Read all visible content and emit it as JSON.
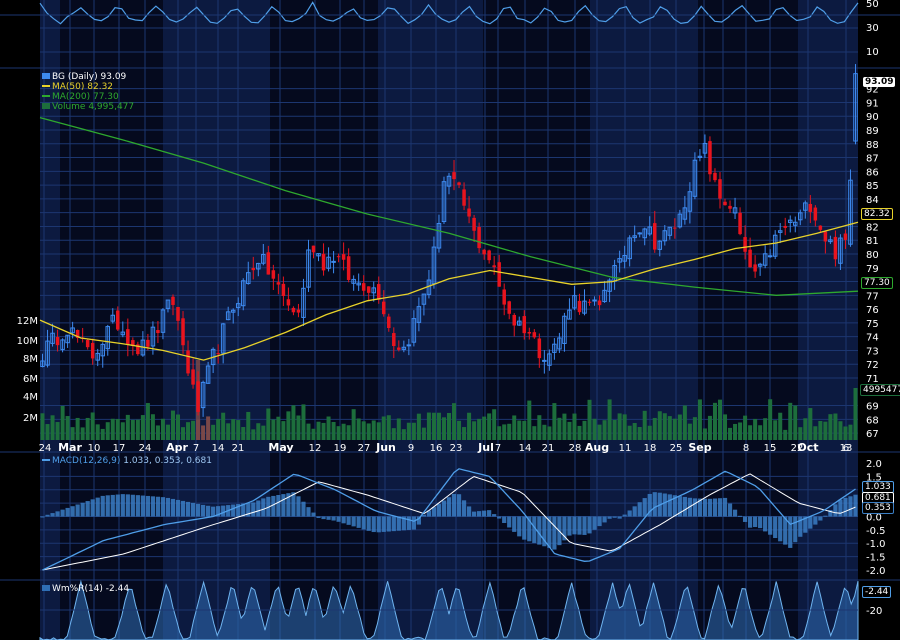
{
  "colors": {
    "background": "#000000",
    "band_dark": "#050a1e",
    "band_light": "#0c1a40",
    "grid": "#1c3670",
    "up_candle": "#3d8af0",
    "down_candle": "#e8141e",
    "ma50": "#e8d22a",
    "ma200": "#2ea82e",
    "volume": "#1d6e3c",
    "macd_line": "#4f9ee8",
    "signal_line": "#ffffff",
    "histogram": "#3b7ec4",
    "wr_fill": "#2f6eb5"
  },
  "legend": {
    "symbol": "BG (Daily) 93.09",
    "ma50": "MA(50) 82.32",
    "ma200": "MA(200) 77.30",
    "volume": "Volume 4,995,477"
  },
  "macd_legend": {
    "label": "MACD(12,26,9)",
    "values": "1.033, 0.353, 0.681"
  },
  "wr_legend": "Wm%R(14) -2.44",
  "badges": {
    "price": "93.09",
    "ma50": "82.32",
    "ma200": "77.30",
    "volume": "4995477",
    "macd_1": "1.033",
    "macd_2": "0.681",
    "macd_3": "0.353",
    "wr": "-2.44"
  },
  "top_axis": [
    "50",
    "30",
    "10"
  ],
  "chart_data": [
    {
      "type": "candlestick",
      "title": "BG (Daily)",
      "y_ticks": [
        67,
        68,
        69,
        71,
        72,
        73,
        74,
        75,
        76,
        77,
        78,
        79,
        80,
        81,
        82,
        83,
        84,
        85,
        86,
        87,
        88,
        89,
        90,
        91,
        92
      ],
      "ylim": [
        66.5,
        93.5
      ],
      "x_day_labels": [
        "24",
        "10",
        "17",
        "24",
        "7",
        "14",
        "21",
        "12",
        "19",
        "27",
        "9",
        "16",
        "23",
        "7",
        "14",
        "21",
        "28",
        "11",
        "18",
        "25",
        "8",
        "15",
        "22",
        "6",
        "13"
      ],
      "x_month_labels": [
        "Mar",
        "Apr",
        "May",
        "Jun",
        "Jul",
        "Aug",
        "Sep",
        "Oct"
      ],
      "last_close": 93.09,
      "ma50_last": 82.32,
      "ma200_last": 77.3
    },
    {
      "type": "bar",
      "title": "Volume",
      "y_ticks": [
        "12M",
        "10M",
        "8M",
        "6M",
        "4M",
        "2M"
      ],
      "last_value": 4995477
    },
    {
      "type": "line",
      "title": "MACD(12,26,9)",
      "y_ticks": [
        "2.0",
        "1.5",
        "1.0",
        "0.5",
        "0.0",
        "-0.5",
        "-1.0",
        "-1.5",
        "-2.0"
      ],
      "ylim": [
        -2.3,
        2.3
      ],
      "values": [
        1.033,
        0.353,
        0.681
      ]
    },
    {
      "type": "area",
      "title": "Wm%R(14)",
      "y_ticks": [
        "-20"
      ],
      "last_value": -2.44
    }
  ]
}
